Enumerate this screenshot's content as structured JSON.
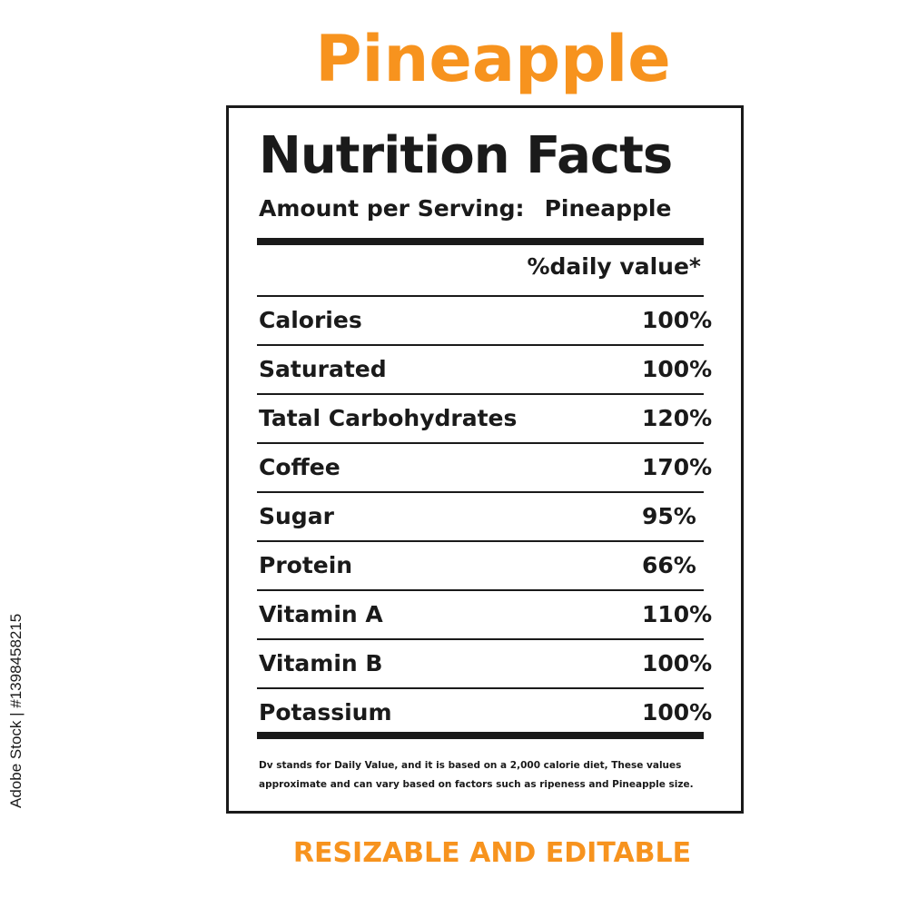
{
  "headline": "Pineapple",
  "label": {
    "title": "Nutrition Facts",
    "serving_label": "Amount per Serving:",
    "serving_value": "Pineapple",
    "dv_header": "%daily value*",
    "rows": [
      {
        "name": "Calories",
        "value": "100%"
      },
      {
        "name": "Saturated",
        "value": "100%"
      },
      {
        "name": "Tatal Carbohydrates",
        "value": "120%"
      },
      {
        "name": "Coffee",
        "value": "170%"
      },
      {
        "name": "Sugar",
        "value": "95%"
      },
      {
        "name": "Protein",
        "value": "66%"
      },
      {
        "name": "Vitamin A",
        "value": "110%"
      },
      {
        "name": "Vitamin B",
        "value": "100%"
      },
      {
        "name": "Potassium",
        "value": "100%"
      }
    ],
    "footnote": "Dv stands for Daily Value, and it is based on a 2,000 calorie diet, These values approximate and can vary based on factors such as ripeness and Pineapple size."
  },
  "tagline": "RESIZABLE AND EDITABLE",
  "stock_id": "Adobe Stock | #1398458215",
  "colors": {
    "accent": "#f7931e",
    "ink": "#1a1a1a",
    "background": "#ffffff"
  }
}
